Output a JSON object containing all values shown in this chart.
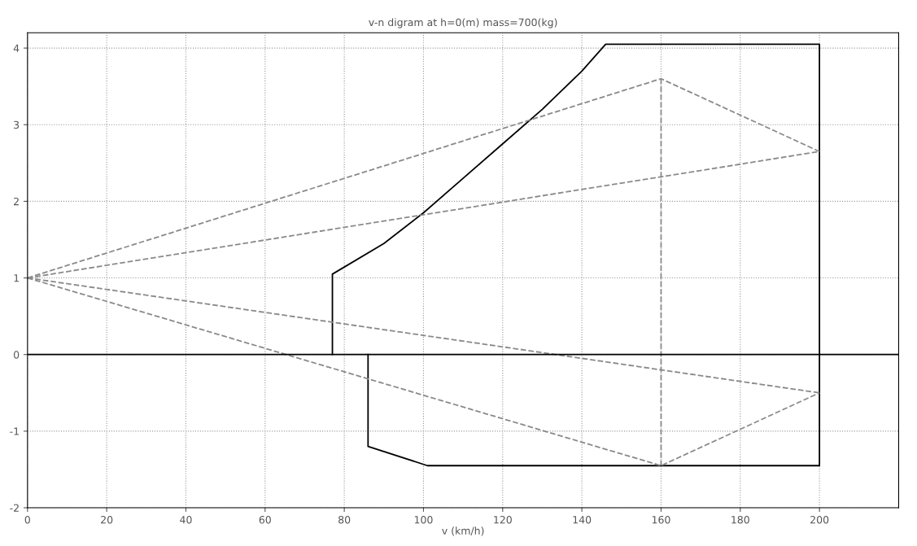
{
  "chart_data": {
    "type": "line",
    "title": "v-n digram at h=0(m) mass=700(kg)",
    "xlabel": "v (km/h)",
    "xlim": [
      0,
      220
    ],
    "xticks": [
      0,
      20,
      40,
      60,
      80,
      100,
      120,
      140,
      160,
      180,
      200
    ],
    "ylim": [
      -2,
      4.2
    ],
    "yticks": [
      -2,
      -1,
      0,
      1,
      2,
      3,
      4
    ],
    "grid": true,
    "ref_lines": [
      {
        "axis": "y",
        "value": 0,
        "color": "#000000",
        "line_style": "solid"
      }
    ],
    "series": [
      {
        "color": "#000000",
        "line_style": "solid",
        "x": [
          77,
          77,
          90,
          100,
          110,
          120,
          130,
          140,
          146,
          200,
          200,
          101,
          86,
          86
        ],
        "values": [
          0,
          1.05,
          1.45,
          1.85,
          2.3,
          2.75,
          3.2,
          3.7,
          4.05,
          4.05,
          -1.45,
          -1.45,
          -1.2,
          0
        ]
      },
      {
        "color": "#8a8a8a",
        "line_style": "dashed",
        "x": [
          0,
          160,
          200
        ],
        "values": [
          1,
          3.6,
          2.65
        ]
      },
      {
        "color": "#8a8a8a",
        "line_style": "dashed",
        "x": [
          0,
          200
        ],
        "values": [
          1,
          2.65
        ]
      },
      {
        "color": "#8a8a8a",
        "line_style": "dashed",
        "x": [
          0,
          200
        ],
        "values": [
          1,
          -0.5
        ]
      },
      {
        "color": "#8a8a8a",
        "line_style": "dashed",
        "x": [
          0,
          160,
          200
        ],
        "values": [
          1,
          -1.45,
          -0.5
        ]
      },
      {
        "color": "#8a8a8a",
        "line_style": "dashed",
        "x": [
          160,
          160
        ],
        "values": [
          3.6,
          -1.45
        ]
      }
    ]
  }
}
